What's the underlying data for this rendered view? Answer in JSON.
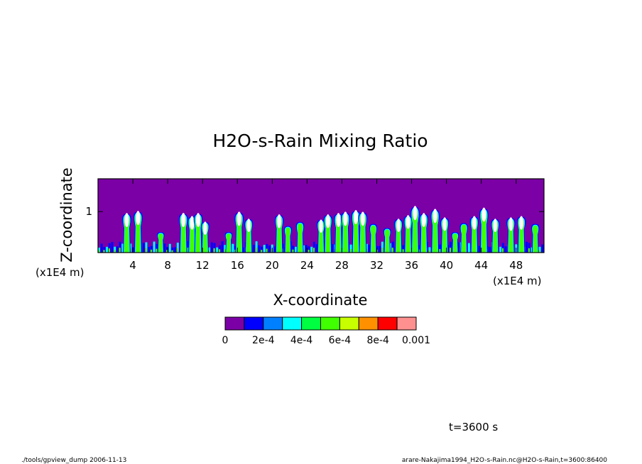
{
  "chart_data": {
    "type": "heatmap",
    "title": "H2O-s-Rain Mixing Ratio",
    "xlabel": "X-coordinate",
    "ylabel": "Z-coordinate",
    "x_unit": "(x1E4 m)",
    "z_unit": "(x1E4 m)",
    "xlim": [
      0,
      51.2
    ],
    "zlim": [
      0,
      1.8
    ],
    "x_ticks": [
      "4",
      "8",
      "12",
      "16",
      "20",
      "24",
      "28",
      "32",
      "36",
      "40",
      "44",
      "48"
    ],
    "x_tick_values": [
      4,
      8,
      12,
      16,
      20,
      24,
      28,
      32,
      36,
      40,
      44,
      48
    ],
    "z_ticks": [
      "1"
    ],
    "z_tick_values": [
      1
    ],
    "colorbar": {
      "levels": [
        0,
        0.0001,
        0.0002,
        0.0003,
        0.0004,
        0.0005,
        0.0006,
        0.0007,
        0.0008,
        0.0009,
        0.001
      ],
      "colors": [
        "#7b00a6",
        "#0000ff",
        "#0080ff",
        "#00ffff",
        "#00ff40",
        "#40ff00",
        "#c8ff00",
        "#ff9000",
        "#ff0000",
        "#ff9090"
      ],
      "labels": [
        "0",
        "2e-4",
        "4e-4",
        "6e-4",
        "8e-4",
        "0.001"
      ]
    },
    "background_color": "#7b00a6",
    "plume_colors": {
      "low": "#0000ff",
      "mid": "#00ffff",
      "high": "#40ff00",
      "peak": "#ffffff"
    },
    "cells_x": [
      3.3,
      4.6,
      7.2,
      9.8,
      10.8,
      11.5,
      12.3,
      15.0,
      16.2,
      17.3,
      20.8,
      21.8,
      23.2,
      25.6,
      26.4,
      27.6,
      28.4,
      29.6,
      30.4,
      31.6,
      33.2,
      34.5,
      35.6,
      36.4,
      37.4,
      38.7,
      39.8,
      41.0,
      42.0,
      43.2,
      44.3,
      45.6,
      47.4,
      48.6,
      50.2
    ],
    "cells_top": [
      0.95,
      1.0,
      0.5,
      0.95,
      0.88,
      0.95,
      0.75,
      0.5,
      0.98,
      0.82,
      0.92,
      0.65,
      0.75,
      0.8,
      0.92,
      0.95,
      0.98,
      1.02,
      0.98,
      0.7,
      0.6,
      0.82,
      0.9,
      1.12,
      0.95,
      1.05,
      0.85,
      0.5,
      0.72,
      0.88,
      1.08,
      0.82,
      0.85,
      0.88,
      0.7
    ],
    "cells_intensity": [
      0.95,
      1.0,
      0.4,
      0.98,
      0.9,
      0.95,
      0.75,
      0.45,
      1.0,
      0.8,
      0.9,
      0.55,
      0.7,
      0.75,
      0.9,
      0.95,
      1.0,
      1.0,
      0.98,
      0.6,
      0.5,
      0.8,
      0.9,
      1.0,
      0.95,
      1.0,
      0.85,
      0.45,
      0.65,
      0.88,
      1.0,
      0.8,
      0.85,
      0.9,
      0.65
    ]
  },
  "time_label": "t=3600 s",
  "footer_left": "./tools/gpview_dump   2006-11-13",
  "footer_right": "arare-Nakajima1994_H2O-s-Rain.nc@H2O-s-Rain,t=3600:86400"
}
